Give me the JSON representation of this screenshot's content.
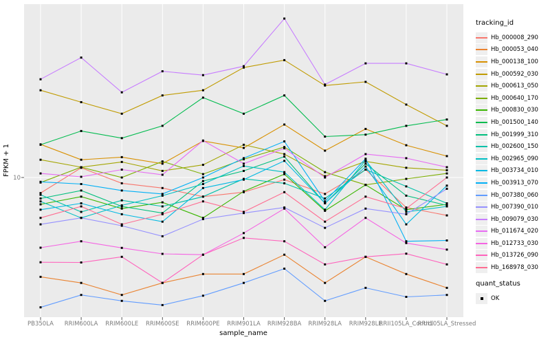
{
  "figure": {
    "background": "#ffffff"
  },
  "panel": {
    "background": "#EBEBEB",
    "gridline_color": "#FFFFFF",
    "tick_color": "#555555"
  },
  "y_axis": {
    "title": "FPKM + 1",
    "tick_label": "10",
    "tick_value": 10,
    "scale": "log10"
  },
  "x_axis": {
    "title": "sample_name"
  },
  "legend": {
    "position": "right",
    "tracking_title": "tracking_id",
    "quant_title": "quant_status",
    "quant_items": [
      {
        "label": "OK",
        "marker": "black-square"
      }
    ]
  },
  "marker": {
    "shape": "square",
    "color": "#000000",
    "size": 3
  },
  "chart_data": {
    "type": "line",
    "xlabel": "sample_name",
    "ylabel": "FPKM + 1",
    "y_scale": "log10",
    "y_breaks": [
      10
    ],
    "ylim": [
      1.35,
      120
    ],
    "grid": "on",
    "legend_position": "right",
    "categories": [
      "PB350LA",
      "RRIM600LA",
      "RRIM600LE",
      "RRIM600SE",
      "RRIM600PE",
      "RRIM901LA",
      "RRIM928BA",
      "RRIM928LA",
      "RRIM928LE",
      "RRII105LA_Control",
      "RRII105LA_Stressed"
    ],
    "series": [
      {
        "name": "Hb_000008_290",
        "color": "#F8766D",
        "values": [
          8.0,
          11.5,
          9.2,
          8.6,
          7.6,
          8.1,
          9.7,
          7.9,
          11.2,
          6.5,
          5.8
        ]
      },
      {
        "name": "Hb_000053_040",
        "color": "#EA8331",
        "values": [
          2.4,
          2.2,
          1.85,
          2.2,
          2.5,
          2.5,
          3.3,
          2.2,
          3.2,
          2.5,
          2.05
        ]
      },
      {
        "name": "Hb_000138_100",
        "color": "#D89000",
        "values": [
          16.1,
          12.9,
          13.4,
          12.2,
          16.9,
          15.3,
          21.4,
          14.7,
          20.1,
          15.9,
          13.6
        ]
      },
      {
        "name": "Hb_000592_030",
        "color": "#C09B00",
        "values": [
          35,
          29.5,
          25,
          32.5,
          35,
          48.5,
          54,
          37.5,
          39.5,
          28.5,
          21
        ]
      },
      {
        "name": "Hb_000613_050",
        "color": "#A3A500",
        "values": [
          12.9,
          11.6,
          12.5,
          11.0,
          12.0,
          16.0,
          14.0,
          10.2,
          12.6,
          11.5,
          11.1
        ]
      },
      {
        "name": "Hb_000640_170",
        "color": "#7CAE00",
        "values": [
          9.3,
          11.6,
          10.0,
          12.6,
          10.5,
          13.0,
          15.5,
          10.8,
          9.0,
          9.8,
          10.6
        ]
      },
      {
        "name": "Hb_000830_030",
        "color": "#39B600",
        "values": [
          6.8,
          7.6,
          6.4,
          7.0,
          5.6,
          8.2,
          10.5,
          6.2,
          9.0,
          6.3,
          6.8
        ]
      },
      {
        "name": "Hb_001500_140",
        "color": "#00BB4E",
        "values": [
          16.0,
          19.5,
          17.6,
          21.0,
          31.5,
          25.0,
          32.5,
          18.0,
          18.5,
          21.0,
          23.0
        ]
      },
      {
        "name": "Hb_001999_310",
        "color": "#00BF7D",
        "values": [
          7.4,
          8.3,
          6.6,
          6.0,
          9.5,
          11.0,
          13.5,
          6.9,
          12.2,
          7.7,
          6.7
        ]
      },
      {
        "name": "Hb_002600_150",
        "color": "#00C1A9",
        "values": [
          7.8,
          6.1,
          7.2,
          6.6,
          7.6,
          9.8,
          9.2,
          7.4,
          11.2,
          8.8,
          6.9
        ]
      },
      {
        "name": "Hb_002965_090",
        "color": "#00BFC4",
        "values": [
          7.1,
          5.6,
          6.7,
          7.7,
          9.1,
          11.8,
          10.8,
          6.3,
          12.8,
          6.1,
          6.6
        ]
      },
      {
        "name": "Hb_003734_010",
        "color": "#00B9E3",
        "values": [
          6.3,
          6.9,
          5.9,
          5.3,
          8.6,
          9.7,
          12.7,
          6.9,
          11.7,
          5.1,
          8.9
        ]
      },
      {
        "name": "Hb_003913_070",
        "color": "#00B0F6",
        "values": [
          9.4,
          9.1,
          8.3,
          7.9,
          10.0,
          13.2,
          16.8,
          7.1,
          13.1,
          4.0,
          4.05
        ]
      },
      {
        "name": "Hb_007380_060",
        "color": "#619CFF",
        "values": [
          1.55,
          1.85,
          1.7,
          1.6,
          1.83,
          2.2,
          2.7,
          1.7,
          2.05,
          1.8,
          1.85
        ]
      },
      {
        "name": "Hb_007390_010",
        "color": "#9590FF",
        "values": [
          5.1,
          5.6,
          5.0,
          4.3,
          5.5,
          6.0,
          6.5,
          4.85,
          6.4,
          5.9,
          8.5
        ]
      },
      {
        "name": "Hb_009079_030",
        "color": "#C77CFF",
        "values": [
          41,
          56,
          34,
          46,
          43.5,
          49.5,
          98,
          38,
          51.5,
          51.5,
          44
        ]
      },
      {
        "name": "Hb_011674_020",
        "color": "#E76BF3",
        "values": [
          10.6,
          10.1,
          11.2,
          10.4,
          17.0,
          12.2,
          15.2,
          10.0,
          14.0,
          13.2,
          11.6
        ]
      },
      {
        "name": "Hb_012733_030",
        "color": "#F564E3",
        "values": [
          3.65,
          4.0,
          3.64,
          3.34,
          3.3,
          4.5,
          6.4,
          3.67,
          5.6,
          3.9,
          3.55
        ]
      },
      {
        "name": "Hb_013726_090",
        "color": "#FF62BC",
        "values": [
          2.96,
          2.95,
          3.2,
          2.2,
          3.3,
          4.2,
          4.0,
          2.87,
          3.2,
          3.35,
          2.87
        ]
      },
      {
        "name": "Hb_168978_030",
        "color": "#FF6C91",
        "values": [
          5.6,
          6.6,
          5.1,
          5.9,
          7.1,
          6.1,
          8.1,
          5.3,
          7.6,
          6.4,
          10.0
        ]
      }
    ]
  }
}
